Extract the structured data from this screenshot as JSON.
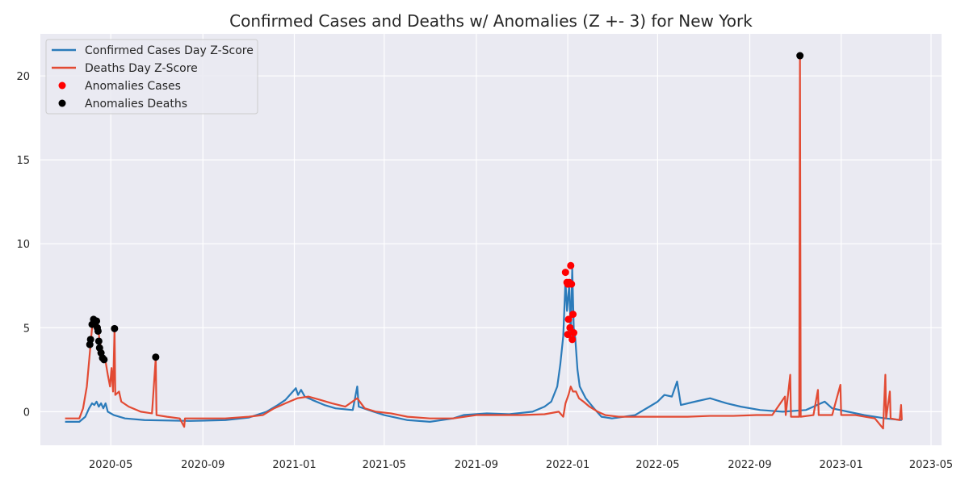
{
  "chart_data": {
    "type": "line",
    "title": "Confirmed Cases and Deaths w/ Anomalies (Z +- 3) for New York",
    "xlabel": "",
    "ylabel": "",
    "x_axis": {
      "type": "date",
      "range": [
        "2020-01-28",
        "2023-05-15"
      ]
    },
    "ylim": [
      -2,
      22.5
    ],
    "y_ticks": [
      0,
      5,
      10,
      15,
      20
    ],
    "x_ticks": [
      {
        "date": "2020-05-01",
        "label": "2020-05"
      },
      {
        "date": "2020-09-01",
        "label": "2020-09"
      },
      {
        "date": "2021-01-01",
        "label": "2021-01"
      },
      {
        "date": "2021-05-01",
        "label": "2021-05"
      },
      {
        "date": "2021-09-01",
        "label": "2021-09"
      },
      {
        "date": "2022-01-01",
        "label": "2022-01"
      },
      {
        "date": "2022-05-01",
        "label": "2022-05"
      },
      {
        "date": "2022-09-01",
        "label": "2022-09"
      },
      {
        "date": "2023-01-01",
        "label": "2023-01"
      },
      {
        "date": "2023-05-01",
        "label": "2023-05"
      }
    ],
    "grid": true,
    "legend_position": "top-left",
    "background": "#eaeaf2",
    "series": [
      {
        "name": "Confirmed Cases Day Z-Score",
        "kind": "line",
        "color": "#2b7bba",
        "points": [
          [
            "2020-03-01",
            -0.6
          ],
          [
            "2020-03-20",
            -0.6
          ],
          [
            "2020-03-28",
            -0.3
          ],
          [
            "2020-04-02",
            0.2
          ],
          [
            "2020-04-06",
            0.5
          ],
          [
            "2020-04-09",
            0.4
          ],
          [
            "2020-04-12",
            0.6
          ],
          [
            "2020-04-15",
            0.3
          ],
          [
            "2020-04-18",
            0.5
          ],
          [
            "2020-04-21",
            0.2
          ],
          [
            "2020-04-24",
            0.5
          ],
          [
            "2020-04-27",
            0.0
          ],
          [
            "2020-05-05",
            -0.2
          ],
          [
            "2020-05-20",
            -0.4
          ],
          [
            "2020-06-15",
            -0.5
          ],
          [
            "2020-08-15",
            -0.55
          ],
          [
            "2020-10-01",
            -0.5
          ],
          [
            "2020-11-01",
            -0.35
          ],
          [
            "2020-11-25",
            0.0
          ],
          [
            "2020-12-10",
            0.4
          ],
          [
            "2020-12-20",
            0.7
          ],
          [
            "2020-12-28",
            1.1
          ],
          [
            "2021-01-03",
            1.4
          ],
          [
            "2021-01-06",
            1.0
          ],
          [
            "2021-01-10",
            1.3
          ],
          [
            "2021-01-15",
            0.9
          ],
          [
            "2021-01-25",
            0.7
          ],
          [
            "2021-02-10",
            0.4
          ],
          [
            "2021-02-25",
            0.2
          ],
          [
            "2021-03-20",
            0.1
          ],
          [
            "2021-03-26",
            1.5
          ],
          [
            "2021-03-28",
            0.3
          ],
          [
            "2021-04-10",
            0.1
          ],
          [
            "2021-05-01",
            -0.2
          ],
          [
            "2021-06-01",
            -0.5
          ],
          [
            "2021-07-01",
            -0.6
          ],
          [
            "2021-08-01",
            -0.4
          ],
          [
            "2021-08-15",
            -0.2
          ],
          [
            "2021-09-15",
            -0.1
          ],
          [
            "2021-10-15",
            -0.15
          ],
          [
            "2021-11-15",
            0.0
          ],
          [
            "2021-12-01",
            0.3
          ],
          [
            "2021-12-10",
            0.6
          ],
          [
            "2021-12-18",
            1.5
          ],
          [
            "2021-12-22",
            2.8
          ],
          [
            "2021-12-26",
            4.5
          ],
          [
            "2021-12-29",
            7.8
          ],
          [
            "2021-12-31",
            6.0
          ],
          [
            "2022-01-03",
            7.6
          ],
          [
            "2022-01-05",
            4.5
          ],
          [
            "2022-01-07",
            8.5
          ],
          [
            "2022-01-09",
            5.0
          ],
          [
            "2022-01-11",
            4.4
          ],
          [
            "2022-01-14",
            2.5
          ],
          [
            "2022-01-17",
            1.5
          ],
          [
            "2022-01-25",
            0.8
          ],
          [
            "2022-02-05",
            0.2
          ],
          [
            "2022-02-15",
            -0.3
          ],
          [
            "2022-03-01",
            -0.4
          ],
          [
            "2022-04-01",
            -0.2
          ],
          [
            "2022-04-20",
            0.3
          ],
          [
            "2022-05-01",
            0.6
          ],
          [
            "2022-05-10",
            1.0
          ],
          [
            "2022-05-20",
            0.9
          ],
          [
            "2022-05-27",
            1.8
          ],
          [
            "2022-06-01",
            0.4
          ],
          [
            "2022-06-20",
            0.6
          ],
          [
            "2022-07-10",
            0.8
          ],
          [
            "2022-08-01",
            0.5
          ],
          [
            "2022-08-20",
            0.3
          ],
          [
            "2022-09-15",
            0.1
          ],
          [
            "2022-10-15",
            0.0
          ],
          [
            "2022-11-15",
            0.1
          ],
          [
            "2022-12-10",
            0.6
          ],
          [
            "2022-12-20",
            0.2
          ],
          [
            "2023-01-10",
            0.0
          ],
          [
            "2023-02-01",
            -0.2
          ],
          [
            "2023-03-01",
            -0.4
          ],
          [
            "2023-03-23",
            -0.5
          ]
        ]
      },
      {
        "name": "Deaths Day Z-Score",
        "kind": "line",
        "color": "#e24a33",
        "points": [
          [
            "2020-03-01",
            -0.4
          ],
          [
            "2020-03-20",
            -0.4
          ],
          [
            "2020-03-25",
            0.2
          ],
          [
            "2020-03-30",
            1.5
          ],
          [
            "2020-04-03",
            3.5
          ],
          [
            "2020-04-06",
            5.0
          ],
          [
            "2020-04-08",
            5.5
          ],
          [
            "2020-04-10",
            5.3
          ],
          [
            "2020-04-12",
            5.4
          ],
          [
            "2020-04-14",
            5.1
          ],
          [
            "2020-04-16",
            4.2
          ],
          [
            "2020-04-18",
            3.8
          ],
          [
            "2020-04-21",
            3.2
          ],
          [
            "2020-04-24",
            3.0
          ],
          [
            "2020-04-27",
            2.2
          ],
          [
            "2020-04-30",
            1.5
          ],
          [
            "2020-05-02",
            2.6
          ],
          [
            "2020-05-04",
            1.2
          ],
          [
            "2020-05-06",
            4.9
          ],
          [
            "2020-05-07",
            1.0
          ],
          [
            "2020-05-12",
            1.2
          ],
          [
            "2020-05-15",
            0.6
          ],
          [
            "2020-05-25",
            0.3
          ],
          [
            "2020-06-10",
            0.0
          ],
          [
            "2020-06-25",
            -0.1
          ],
          [
            "2020-06-30",
            3.2
          ],
          [
            "2020-07-01",
            -0.2
          ],
          [
            "2020-07-15",
            -0.3
          ],
          [
            "2020-08-01",
            -0.4
          ],
          [
            "2020-08-07",
            -0.9
          ],
          [
            "2020-08-08",
            -0.4
          ],
          [
            "2020-09-01",
            -0.4
          ],
          [
            "2020-10-01",
            -0.4
          ],
          [
            "2020-11-01",
            -0.3
          ],
          [
            "2020-11-20",
            -0.2
          ],
          [
            "2020-12-05",
            0.2
          ],
          [
            "2020-12-20",
            0.5
          ],
          [
            "2021-01-05",
            0.8
          ],
          [
            "2021-01-20",
            0.9
          ],
          [
            "2021-02-05",
            0.7
          ],
          [
            "2021-02-20",
            0.5
          ],
          [
            "2021-03-10",
            0.3
          ],
          [
            "2021-03-26",
            0.8
          ],
          [
            "2021-04-05",
            0.2
          ],
          [
            "2021-04-20",
            0.0
          ],
          [
            "2021-05-10",
            -0.1
          ],
          [
            "2021-06-01",
            -0.3
          ],
          [
            "2021-07-01",
            -0.4
          ],
          [
            "2021-08-01",
            -0.4
          ],
          [
            "2021-09-01",
            -0.2
          ],
          [
            "2021-10-01",
            -0.2
          ],
          [
            "2021-11-01",
            -0.2
          ],
          [
            "2021-12-01",
            -0.15
          ],
          [
            "2021-12-20",
            0.0
          ],
          [
            "2021-12-26",
            -0.3
          ],
          [
            "2021-12-29",
            0.5
          ],
          [
            "2022-01-02",
            1.0
          ],
          [
            "2022-01-05",
            1.5
          ],
          [
            "2022-01-08",
            1.2
          ],
          [
            "2022-01-12",
            1.2
          ],
          [
            "2022-01-16",
            0.8
          ],
          [
            "2022-01-22",
            0.6
          ],
          [
            "2022-01-30",
            0.3
          ],
          [
            "2022-02-10",
            0.0
          ],
          [
            "2022-02-20",
            -0.2
          ],
          [
            "2022-03-10",
            -0.3
          ],
          [
            "2022-04-10",
            -0.3
          ],
          [
            "2022-05-10",
            -0.3
          ],
          [
            "2022-06-10",
            -0.3
          ],
          [
            "2022-07-10",
            -0.25
          ],
          [
            "2022-08-10",
            -0.25
          ],
          [
            "2022-09-10",
            -0.2
          ],
          [
            "2022-10-01",
            -0.2
          ],
          [
            "2022-10-18",
            0.9
          ],
          [
            "2022-10-19",
            -0.2
          ],
          [
            "2022-10-25",
            2.2
          ],
          [
            "2022-10-26",
            -0.3
          ],
          [
            "2022-11-06",
            -0.3
          ],
          [
            "2022-11-07",
            21.2
          ],
          [
            "2022-11-08",
            -0.3
          ],
          [
            "2022-11-25",
            -0.2
          ],
          [
            "2022-12-01",
            1.3
          ],
          [
            "2022-12-02",
            -0.2
          ],
          [
            "2022-12-20",
            -0.2
          ],
          [
            "2022-12-31",
            1.6
          ],
          [
            "2023-01-01",
            -0.2
          ],
          [
            "2023-01-20",
            -0.2
          ],
          [
            "2023-02-15",
            -0.4
          ],
          [
            "2023-02-26",
            -1.0
          ],
          [
            "2023-03-01",
            2.2
          ],
          [
            "2023-03-02",
            -0.4
          ],
          [
            "2023-03-07",
            1.2
          ],
          [
            "2023-03-08",
            -0.4
          ],
          [
            "2023-03-20",
            -0.5
          ],
          [
            "2023-03-22",
            0.4
          ],
          [
            "2023-03-23",
            -0.5
          ]
        ]
      },
      {
        "name": "Anomalies Cases",
        "kind": "scatter",
        "color": "#ff0000",
        "points": [
          [
            "2021-12-29",
            8.3
          ],
          [
            "2021-12-31",
            7.7
          ],
          [
            "2022-01-01",
            7.6
          ],
          [
            "2022-01-03",
            7.7
          ],
          [
            "2022-01-05",
            8.7
          ],
          [
            "2022-01-06",
            7.6
          ],
          [
            "2022-01-08",
            5.8
          ],
          [
            "2022-01-02",
            5.5
          ],
          [
            "2022-01-04",
            5.0
          ],
          [
            "2022-01-07",
            4.3
          ],
          [
            "2022-01-09",
            4.7
          ],
          [
            "2022-01-01",
            4.6
          ]
        ]
      },
      {
        "name": "Anomalies Deaths",
        "kind": "scatter",
        "color": "#000000",
        "points": [
          [
            "2020-04-03",
            4.0
          ],
          [
            "2020-04-04",
            4.3
          ],
          [
            "2020-04-06",
            5.2
          ],
          [
            "2020-04-08",
            5.5
          ],
          [
            "2020-04-10",
            5.3
          ],
          [
            "2020-04-12",
            5.4
          ],
          [
            "2020-04-13",
            5.0
          ],
          [
            "2020-04-14",
            4.8
          ],
          [
            "2020-04-15",
            4.2
          ],
          [
            "2020-04-16",
            3.8
          ],
          [
            "2020-04-18",
            3.5
          ],
          [
            "2020-04-20",
            3.2
          ],
          [
            "2020-04-22",
            3.1
          ],
          [
            "2020-05-06",
            4.95
          ],
          [
            "2020-06-30",
            3.25
          ],
          [
            "2022-11-07",
            21.2
          ]
        ]
      }
    ]
  }
}
